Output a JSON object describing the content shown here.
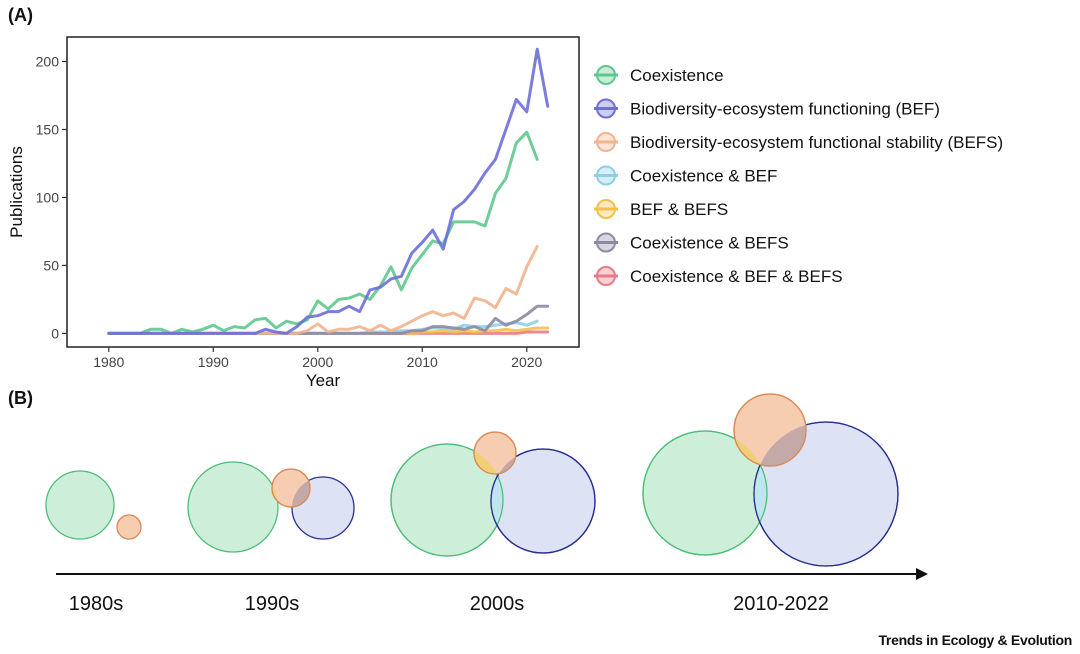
{
  "panel_a_label": "(A)",
  "panel_b_label": "(B)",
  "credit": "Trends in Ecology & Evolution",
  "chart_data": {
    "type": "line",
    "xlabel": "Year",
    "ylabel": "Publications",
    "xlim": [
      1976,
      2025
    ],
    "ylim": [
      -10,
      218
    ],
    "xticks": [
      1980,
      1990,
      2000,
      2010,
      2020
    ],
    "yticks": [
      0,
      50,
      100,
      150,
      200
    ],
    "grid": false,
    "legend_position": "right",
    "x": [
      1980,
      1981,
      1982,
      1983,
      1984,
      1985,
      1986,
      1987,
      1988,
      1989,
      1990,
      1991,
      1992,
      1993,
      1994,
      1995,
      1996,
      1997,
      1998,
      1999,
      2000,
      2001,
      2002,
      2003,
      2004,
      2005,
      2006,
      2007,
      2008,
      2009,
      2010,
      2011,
      2012,
      2013,
      2014,
      2015,
      2016,
      2017,
      2018,
      2019,
      2020,
      2021,
      2022
    ],
    "series": [
      {
        "name": "Coexistence",
        "color": "#5fc88d",
        "values": [
          0,
          0,
          0,
          0,
          3,
          3,
          0,
          3,
          1,
          3,
          6,
          2,
          5,
          4,
          10,
          11,
          4,
          9,
          7,
          10,
          24,
          18,
          25,
          26,
          29,
          25,
          35,
          49,
          32,
          48,
          58,
          68,
          66,
          82,
          82,
          82,
          79,
          103,
          114,
          140,
          148,
          128,
          null
        ]
      },
      {
        "name": "Biodiversity-ecosystem functioning (BEF)",
        "color": "#6d6fd8",
        "values": [
          0,
          0,
          0,
          0,
          0,
          0,
          0,
          0,
          0,
          0,
          0,
          0,
          0,
          0,
          0,
          3,
          1,
          0,
          5,
          12,
          13,
          16,
          16,
          20,
          16,
          32,
          34,
          40,
          42,
          59,
          67,
          76,
          62,
          91,
          97,
          106,
          118,
          128,
          150,
          172,
          163,
          209,
          167
        ]
      },
      {
        "name": "Biodiversity-ecosystem functional stability (BEFS)",
        "color": "#f0b48e",
        "values": [
          0,
          0,
          0,
          0,
          0,
          0,
          0,
          0,
          0,
          0,
          0,
          0,
          0,
          0,
          0,
          0,
          0,
          0,
          0,
          2,
          7,
          1,
          3,
          3,
          5,
          2,
          6,
          2,
          5,
          9,
          13,
          16,
          13,
          15,
          11,
          26,
          24,
          19,
          33,
          29,
          49,
          64,
          null
        ]
      },
      {
        "name": "Coexistence & BEF",
        "color": "#8ecfe6",
        "values": [
          0,
          0,
          0,
          0,
          0,
          0,
          0,
          0,
          0,
          0,
          0,
          0,
          0,
          0,
          0,
          0,
          0,
          0,
          0,
          0,
          0,
          0,
          0,
          0,
          0,
          1,
          1,
          1,
          2,
          2,
          3,
          4,
          4,
          3,
          6,
          5,
          5,
          6,
          7,
          8,
          6,
          9,
          null
        ]
      },
      {
        "name": "BEF & BEFS",
        "color": "#f3c14a",
        "values": [
          0,
          0,
          0,
          0,
          0,
          0,
          0,
          0,
          0,
          0,
          0,
          0,
          0,
          0,
          0,
          0,
          0,
          0,
          0,
          0,
          0,
          0,
          0,
          0,
          0,
          0,
          0,
          0,
          1,
          0,
          1,
          1,
          2,
          1,
          2,
          1,
          2,
          2,
          3,
          2,
          3,
          4,
          4
        ]
      },
      {
        "name": "Coexistence & BEFS",
        "color": "#8e8aa6",
        "values": [
          0,
          0,
          0,
          0,
          0,
          0,
          0,
          0,
          0,
          0,
          0,
          0,
          0,
          0,
          0,
          0,
          0,
          0,
          0,
          0,
          0,
          0,
          0,
          0,
          0,
          0,
          0,
          0,
          0,
          2,
          2,
          5,
          5,
          4,
          3,
          5,
          2,
          11,
          6,
          9,
          14,
          20,
          20
        ]
      },
      {
        "name": "Coexistence & BEF & BEFS",
        "color": "#e87c86",
        "values": [
          0,
          0,
          0,
          0,
          0,
          0,
          0,
          0,
          0,
          0,
          0,
          0,
          0,
          0,
          0,
          0,
          0,
          0,
          0,
          0,
          0,
          0,
          0,
          0,
          0,
          0,
          0,
          0,
          0,
          0,
          0,
          0,
          0,
          0,
          0,
          0,
          0,
          0,
          0,
          0,
          1,
          1,
          1
        ]
      }
    ]
  },
  "timeline": {
    "decades": [
      "1980s",
      "1990s",
      "2000s",
      "2010-2022"
    ],
    "legend_circle_colors": {
      "Coexistence": {
        "fill": "#cdeed9",
        "stroke": "#4dbd78"
      },
      "BEF": {
        "fill": "#dde3f5",
        "stroke": "#2a2f8f"
      },
      "BEFS": {
        "fill": "#f6cdb0",
        "stroke": "#d88a58"
      },
      "Coexistence & BEF": "#bfe6ee",
      "BEF & BEFS": "#f1cf6a",
      "Coexistence & BEFS": "#c4a9a8"
    }
  }
}
